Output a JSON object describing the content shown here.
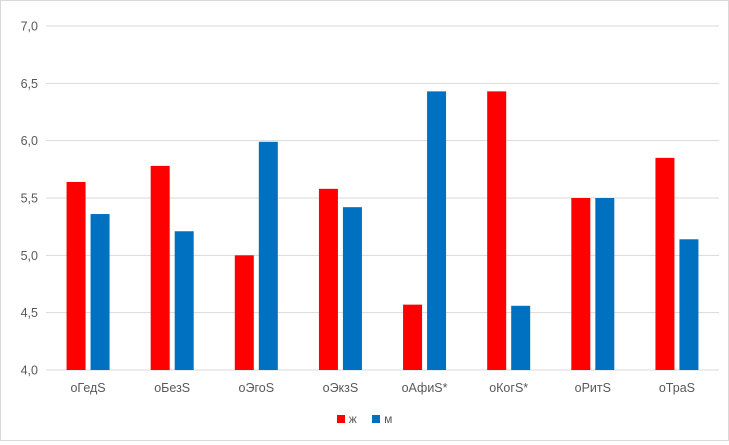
{
  "chart_data": {
    "type": "bar",
    "title": "",
    "xlabel": "",
    "ylabel": "",
    "categories": [
      "оГедS",
      "оБезS",
      "оЭгоS",
      "оЭкзS",
      "оАфиS*",
      "оКогS*",
      "оРитS",
      "оТраS"
    ],
    "series": [
      {
        "name": "ж",
        "color": "#ff0000",
        "values": [
          5.64,
          5.78,
          5.0,
          5.58,
          4.57,
          6.43,
          5.5,
          5.85
        ]
      },
      {
        "name": "м",
        "color": "#0070c0",
        "values": [
          5.36,
          5.21,
          5.99,
          5.42,
          6.43,
          4.56,
          5.5,
          5.14
        ]
      }
    ],
    "ylim": [
      4.0,
      7.0
    ],
    "yticks": [
      "4,0",
      "4,5",
      "5,0",
      "5,5",
      "6,0",
      "6,5",
      "7,0"
    ],
    "grid": true,
    "legend_position": "bottom"
  }
}
